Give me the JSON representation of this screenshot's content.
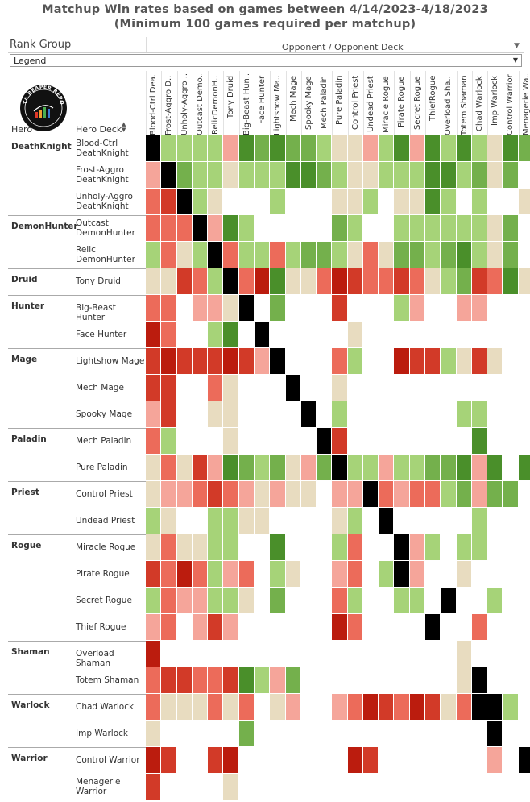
{
  "title_line1": "Matchup Win rates based on games between 4/14/2023-4/18/2023",
  "title_line2": "(Minimum 100 games required per matchup)",
  "rank_group_label": "Rank Group",
  "opponent_label": "Opponent / Opponent Deck",
  "legend_value": "Legend",
  "hero_col_label": "Hero",
  "deck_col_label": "Hero Deck",
  "logo_text": "DATA REAPER REPORT",
  "icons": {
    "dropdown": "chevron-down-icon",
    "sort": "sort-icon",
    "logo": "data-reaper-logo-icon"
  },
  "colors": {
    "K": "#000000",
    "G": "#4a8f2a",
    "g": "#74b04c",
    "l": "#a6d378",
    "n": "#e8dcc0",
    "p": "#f5a59a",
    "r": "#ec6b5a",
    "R": "#d23a28",
    "D": "#bb1c0e",
    "e": "#ffffff"
  },
  "chart_data": {
    "type": "heatmap",
    "title": "Matchup Win rates based on games between 4/14/2023-4/18/2023",
    "subtitle": "(Minimum 100 games required per matchup)",
    "columns": [
      "Blood-Ctrl Dea..",
      "Frost-Aggro D..",
      "Unholy-Aggro ..",
      "Outcast Demo..",
      "RelicDemonH..",
      "Tony Druid",
      "Big-Beast Hun..",
      "Face Hunter",
      "Lightshow Ma..",
      "Mech Mage",
      "Spooky Mage",
      "Mech Paladin",
      "Pure Paladin",
      "Control Priest",
      "Undead Priest",
      "Miracle Rogue",
      "Pirate Rogue",
      "Secret Rogue",
      "ThiefRogue",
      "Overload Sha..",
      "Totem Shaman",
      "Chad Warlock",
      "Imp Warlock",
      "Control Warrior",
      "Menagerie Wa.."
    ],
    "color_key": "K=mirror, G=strong win, g=win, l=slight win, n=even, p=slight loss, r=loss, R=strong loss, D=very strong loss, e=no data",
    "groups": [
      {
        "hero": "DeathKnight",
        "rows": [
          {
            "deck": "Blood-Ctrl\nDeathKnight",
            "cells": "KllllpGgGgglnnplGpGlGlnGg"
          },
          {
            "deck": "Frost-Aggro\nDeathKnight",
            "cells": "pKgllnlllGGglnnlllGGlgnge"
          },
          {
            "deck": "Unholy-Aggro\nDeathKnight",
            "cells": "rRKlneeeleeennlennGleleen"
          }
        ]
      },
      {
        "hero": "DemonHunter",
        "rows": [
          {
            "deck": "Outcast\nDemonHunter",
            "cells": "rrrKpGleeeeegleellllllnge"
          },
          {
            "deck": "Relic\nDemonHunter",
            "cells": "lrnlKrllrlgglnrngglgGlnge"
          }
        ]
      },
      {
        "hero": "Druid",
        "rows": [
          {
            "deck": "Tony Druid",
            "cells": "nnRrlKrDGnnrDRrrRrnlgRrGn"
          }
        ]
      },
      {
        "hero": "Hunter",
        "rows": [
          {
            "deck": "Big-Beast Hunter",
            "cells": "rreppnKegeeeReeelpeeppeee"
          },
          {
            "deck": "Face Hunter",
            "cells": "DreelGeKeeeeineeeeeeeeeee"
          }
        ]
      },
      {
        "hero": "Mage",
        "rows": [
          {
            "deck": "Lightshow Mage",
            "cells": "RDRRRDRpKeeerleeDRRlnRnee"
          },
          {
            "deck": "Mech Mage",
            "cells": "RReerneeeKeeneeeeeeeeeeee"
          },
          {
            "deck": "Spooky Mage",
            "cells": "pReenneeeeKeleeeeeeelleee"
          }
        ]
      },
      {
        "hero": "Paladin",
        "rows": [
          {
            "deck": "Mech Paladin",
            "cells": "rleeeneeeeeKReeeeeeeeGeee"
          },
          {
            "deck": "Pure Paladin",
            "cells": "nrnRpGglgnpgKllpllggGpGeG"
          }
        ]
      },
      {
        "hero": "Priest",
        "rows": [
          {
            "deck": "Control Priest",
            "cells": "npprRrpnpnneppKrprrlgpgge"
          },
          {
            "deck": "Undead Priest",
            "cells": "lneellnneeeenleKeeeeeleee"
          }
        ]
      },
      {
        "hero": "Rogue",
        "rows": [
          {
            "deck": "Miracle Rogue",
            "cells": "nrnnlleeGeeelreeKplelleee"
          },
          {
            "deck": "Pirate Rogue",
            "cells": "RrDrlprelneeprelKpeeneeee"
          },
          {
            "deck": "Secret Rogue",
            "cells": "lrppllnegeeerleelleKeelee"
          },
          {
            "deck": "Thief Rogue",
            "cells": "prepRpeeeeeeDreeeeKeereee"
          }
        ]
      },
      {
        "hero": "Shaman",
        "rows": [
          {
            "deck": "Overload Shaman",
            "cells": "Deeeeeeeeeeeeeeeeeeeneeee"
          },
          {
            "deck": "Totem Shaman",
            "cells": "rRRrrRGlpgeeeeeeeeeenKeee"
          }
        ]
      },
      {
        "hero": "Warlock",
        "rows": [
          {
            "deck": "Chad Warlock",
            "cells": "rnnnrnrenpeeprDRrDRnrKKle"
          },
          {
            "deck": "Imp Warlock",
            "cells": "neeeeegeeeeeeeeeeeeeeeKee"
          }
        ]
      },
      {
        "hero": "Warrior",
        "rows": [
          {
            "deck": "Control Warrior",
            "cells": "DReeRDeeeeeeeDReeeeeeepeK"
          },
          {
            "deck": "Menagerie\nWarrior",
            "cells": "Reeeeneeeeeeeeeeeeeeeeeee"
          }
        ]
      }
    ]
  }
}
